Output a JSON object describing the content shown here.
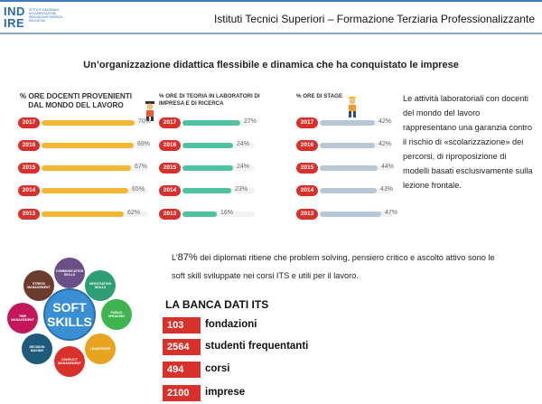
{
  "header": {
    "logo": "INDIRE",
    "logo_sub": "ISTITUTO NAZIONALE DOCUMENTAZIONE INNOVAZIONE RICERCA EDUCATIVA",
    "title": "Istituti Tecnici Superiori – Formazione Terziaria Professionalizzante"
  },
  "subtitle": "Un’organizzazione didattica flessibile e dinamica che ha conquistato le imprese",
  "columns": [
    {
      "title": "% ORE DOCENTI PROVENIENTI DAL MONDO DEL LAVORO",
      "color": "#f2b632",
      "rows": [
        {
          "year": "2017",
          "value": 70,
          "label": "70%"
        },
        {
          "year": "2016",
          "value": 69,
          "label": "69%"
        },
        {
          "year": "2015",
          "value": 67,
          "label": "67%"
        },
        {
          "year": "2014",
          "value": 65,
          "label": "65%"
        },
        {
          "year": "2013",
          "value": 62,
          "label": "62%"
        }
      ]
    },
    {
      "title": "% ORE DI TEORIA IN LABORATORI DI IMPRESA E DI RICERCA",
      "color": "#4fc3a1",
      "rows": [
        {
          "year": "2017",
          "value": 27,
          "label": "27%"
        },
        {
          "year": "2016",
          "value": 24,
          "label": "24%"
        },
        {
          "year": "2015",
          "value": 24,
          "label": "24%"
        },
        {
          "year": "2014",
          "value": 23,
          "label": "23%"
        },
        {
          "year": "2013",
          "value": 16,
          "label": "16%"
        }
      ]
    },
    {
      "title": "% ORE DI STAGE",
      "color": "#b8c7d6",
      "rows": [
        {
          "year": "2017",
          "value": 42,
          "label": "42%"
        },
        {
          "year": "2016",
          "value": 42,
          "label": "42%"
        },
        {
          "year": "2015",
          "value": 44,
          "label": "44%"
        },
        {
          "year": "2014",
          "value": 43,
          "label": "43%"
        },
        {
          "year": "2013",
          "value": 47,
          "label": "47%"
        }
      ]
    }
  ],
  "pill_color": "#d8312b",
  "side_text": "Le attività laboratoriali con docenti del mondo del lavoro rappresentano una garanzia contro il rischio di «scolarizzazione» dei percorsi, di riproposizione di modelli basati esclusivamente sulla lezione frontale.",
  "soft_text_prefix": "L’",
  "soft_text_pct": "87%",
  "soft_text_rest": " dei diplomati ritiene che problem solving, pensiero critico e ascolto attivo sono le soft skill sviluppate nei corsi ITS e utili per il lavoro.",
  "soft_skills": {
    "center_line1": "SOFT",
    "center_line2": "SKILLS",
    "bubbles": [
      {
        "label": "COMMUNICATION SKILLS",
        "color": "#6b4f86"
      },
      {
        "label": "NEGOTIATION SKILLS",
        "color": "#2e9f74"
      },
      {
        "label": "PUBLIC SPEAKING",
        "color": "#3fb34f"
      },
      {
        "label": "LEADERSHIP",
        "color": "#e8a321"
      },
      {
        "label": "CONFLICT MANAGEMENT",
        "color": "#d8312b"
      },
      {
        "label": "DECISION MAKING",
        "color": "#1f5a7a"
      },
      {
        "label": "TIME MANAGEMENT",
        "color": "#c2185b"
      },
      {
        "label": "STRESS MANAGEMENT",
        "color": "#6b3b2e"
      }
    ]
  },
  "banca": {
    "title": "LA BANCA DATI ITS",
    "stats": [
      {
        "num": "103",
        "label": "fondazioni"
      },
      {
        "num": "2564",
        "label": "studenti frequentanti"
      },
      {
        "num": "494",
        "label": "corsi"
      },
      {
        "num": "2100",
        "label": "imprese"
      }
    ]
  }
}
